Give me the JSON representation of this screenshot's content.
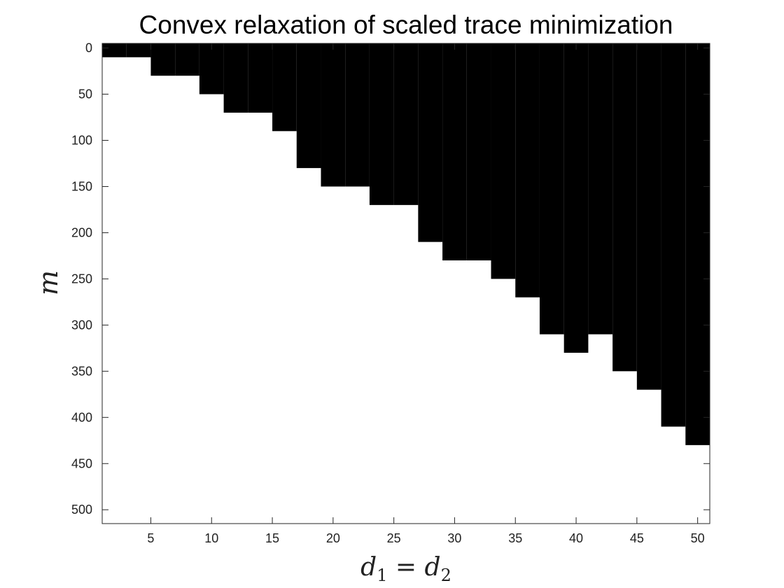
{
  "chart_data": {
    "type": "heatmap",
    "title": "Convex relaxation of scaled trace minimization",
    "xlabel": {
      "var": "d",
      "sub1": "1",
      "eq": " = ",
      "sub2": "2"
    },
    "ylabel": "m",
    "x_ticks": [
      5,
      10,
      15,
      20,
      25,
      30,
      35,
      40,
      45,
      50
    ],
    "y_ticks": [
      0,
      50,
      100,
      150,
      200,
      250,
      300,
      350,
      400,
      450,
      500
    ],
    "xlim": [
      1,
      51
    ],
    "ylim": [
      -5,
      515
    ],
    "y_reversed": true,
    "colormap": {
      "failure": "#000000",
      "success": "#ffffff"
    },
    "d_values": [
      2,
      4,
      6,
      8,
      10,
      12,
      14,
      16,
      18,
      20,
      22,
      24,
      26,
      28,
      30,
      32,
      34,
      36,
      38,
      40,
      42,
      44,
      46,
      48,
      50
    ],
    "m_step": 20,
    "boundary_m_first_success": [
      20,
      20,
      40,
      40,
      60,
      80,
      80,
      100,
      140,
      160,
      160,
      180,
      180,
      220,
      240,
      240,
      260,
      280,
      320,
      340,
      320,
      360,
      380,
      420,
      440
    ]
  }
}
